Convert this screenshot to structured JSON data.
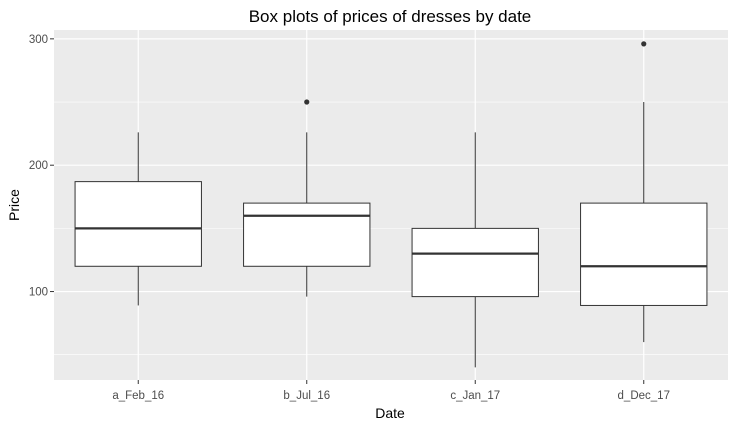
{
  "chart_data": {
    "type": "boxplot",
    "title": "Box plots of prices of dresses by date",
    "xlabel": "Date",
    "ylabel": "Price",
    "categories": [
      "a_Feb_16",
      "b_Jul_16",
      "c_Jan_17",
      "d_Dec_17"
    ],
    "boxes": [
      {
        "category": "a_Feb_16",
        "whisker_low": 89,
        "q1": 120,
        "median": 150,
        "q3": 187,
        "whisker_high": 226,
        "outliers": []
      },
      {
        "category": "b_Jul_16",
        "whisker_low": 96,
        "q1": 120,
        "median": 160,
        "q3": 170,
        "whisker_high": 226,
        "outliers": [
          250
        ]
      },
      {
        "category": "c_Jan_17",
        "whisker_low": 40,
        "q1": 96,
        "median": 130,
        "q3": 150,
        "whisker_high": 226,
        "outliers": []
      },
      {
        "category": "d_Dec_17",
        "whisker_low": 60,
        "q1": 89,
        "median": 120,
        "q3": 170,
        "whisker_high": 250,
        "outliers": [
          296
        ]
      }
    ],
    "ylim": [
      30,
      307
    ],
    "y_ticks": [
      100,
      200,
      300
    ],
    "grid": true,
    "legend": "none",
    "colors": {
      "panel_background": "#ebebeb",
      "grid_major": "#ffffff",
      "box_fill": "#ffffff",
      "box_stroke": "#333333",
      "tick_text": "#4d4d4d"
    }
  }
}
